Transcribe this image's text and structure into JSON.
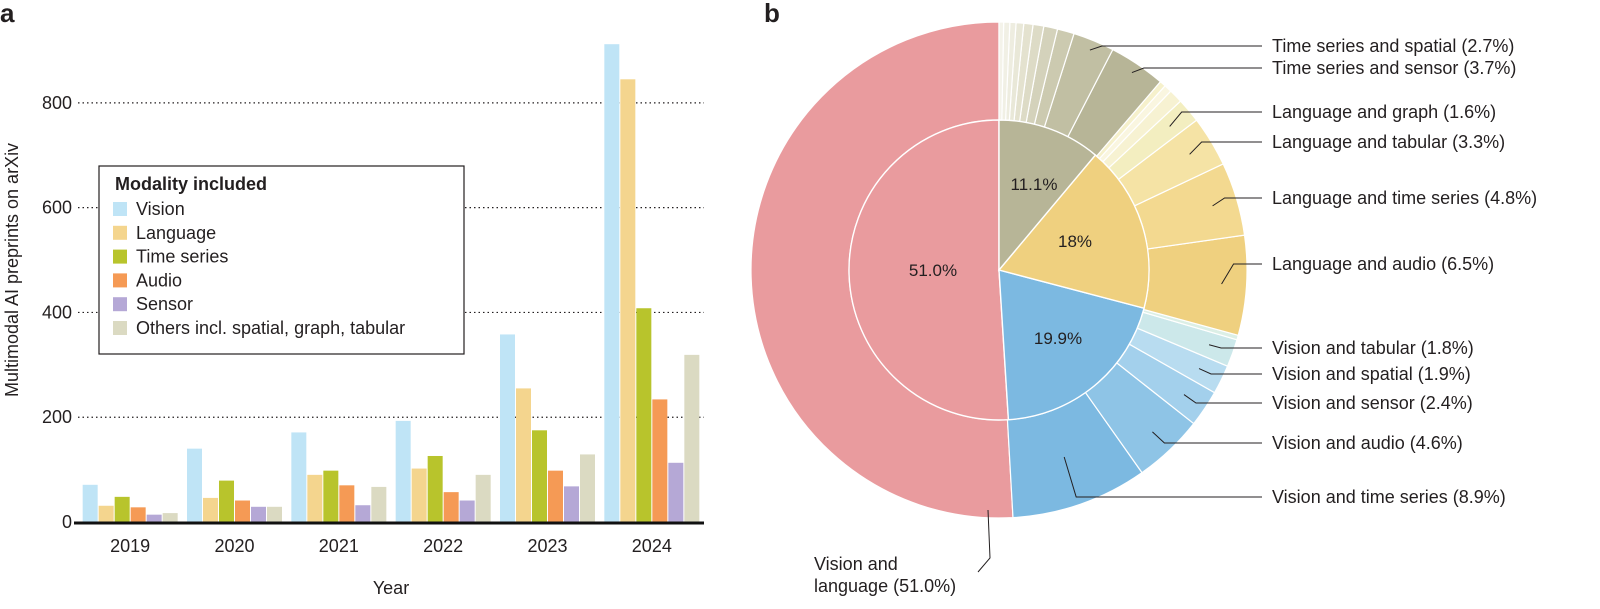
{
  "panels": {
    "a": "a",
    "b": "b"
  },
  "chart_data": [
    {
      "type": "bar",
      "xlabel": "Year",
      "ylabel": "Multimodal AI preprints on arXiv",
      "ylim": [
        0,
        920
      ],
      "yticks": [
        0,
        200,
        400,
        600,
        800
      ],
      "grid": "horizontal dotted",
      "categories": [
        "2019",
        "2020",
        "2021",
        "2022",
        "2023",
        "2024"
      ],
      "legend": {
        "title": "Modality included",
        "placement": "center-left"
      },
      "series": [
        {
          "name": "Vision",
          "color": "#bfe4f6",
          "values": [
            71,
            140,
            171,
            193,
            358,
            912
          ]
        },
        {
          "name": "Language",
          "color": "#f4d58e",
          "values": [
            31,
            46,
            90,
            102,
            255,
            845
          ]
        },
        {
          "name": "Time series",
          "color": "#b8c42c",
          "values": [
            48,
            79,
            98,
            126,
            175,
            408
          ]
        },
        {
          "name": "Audio",
          "color": "#f59a55",
          "values": [
            28,
            41,
            70,
            57,
            98,
            234
          ]
        },
        {
          "name": "Sensor",
          "color": "#b5a8d6",
          "values": [
            14,
            29,
            32,
            41,
            68,
            113
          ]
        },
        {
          "name": "Others incl. spatial, graph, tabular",
          "color": "#dbdac2",
          "values": [
            17,
            29,
            67,
            90,
            129,
            319
          ]
        }
      ]
    },
    {
      "type": "pie",
      "subtype": "nested-donut",
      "inner": [
        {
          "label": "51.0%",
          "value": 51.0,
          "color": "#e99b9e"
        },
        {
          "label": "19.9%",
          "value": 19.9,
          "color": "#7cb9e1"
        },
        {
          "label": "18%",
          "value": 18.0,
          "color": "#efd07f"
        },
        {
          "label": "11.1%",
          "value": 11.1,
          "color": "#b7b597"
        }
      ],
      "outer": [
        {
          "label": "Vision and language (51.0%)",
          "value": 51.0,
          "color": "#e99b9e"
        },
        {
          "label": "Vision and time series (8.9%)",
          "value": 8.9,
          "color": "#7cb9e1"
        },
        {
          "label": "Vision and audio (4.6%)",
          "value": 4.6,
          "color": "#8ec4e6"
        },
        {
          "label": "Vision and sensor (2.4%)",
          "value": 2.4,
          "color": "#a3d0ec"
        },
        {
          "label": "Vision and spatial (1.9%)",
          "value": 1.9,
          "color": "#b8dcf0"
        },
        {
          "label": "Vision and tabular (1.8%)",
          "value": 1.8,
          "color": "#cce8ea"
        },
        {
          "label": "",
          "value": 0.3,
          "color": "#dcefe6"
        },
        {
          "label": "Language and audio (6.5%)",
          "value": 6.5,
          "color": "#efd07f"
        },
        {
          "label": "Language and time series (4.8%)",
          "value": 4.8,
          "color": "#f3d990"
        },
        {
          "label": "Language and tabular (3.3%)",
          "value": 3.3,
          "color": "#f5e3a5"
        },
        {
          "label": "Language and graph (1.6%)",
          "value": 1.6,
          "color": "#f3eec0"
        },
        {
          "label": "",
          "value": 0.9,
          "color": "#f7f2d2"
        },
        {
          "label": "",
          "value": 0.5,
          "color": "#faf6e0"
        },
        {
          "label": "",
          "value": 0.4,
          "color": "#f6f1cc"
        },
        {
          "label": "Time series and sensor (3.7%)",
          "value": 3.7,
          "color": "#b7b597"
        },
        {
          "label": "Time series and spatial (2.7%)",
          "value": 2.7,
          "color": "#c1bfa3"
        },
        {
          "label": "",
          "value": 1.1,
          "color": "#cccab0"
        },
        {
          "label": "",
          "value": 0.9,
          "color": "#d4d2bb"
        },
        {
          "label": "",
          "value": 0.7,
          "color": "#dddbc6"
        },
        {
          "label": "",
          "value": 0.6,
          "color": "#e4e2cf"
        },
        {
          "label": "",
          "value": 0.5,
          "color": "#e9e8d8"
        },
        {
          "label": "",
          "value": 0.4,
          "color": "#eeede0"
        },
        {
          "label": "",
          "value": 0.4,
          "color": "#f1f0e5"
        },
        {
          "label": "",
          "value": 0.3,
          "color": "#f4f3ea"
        }
      ]
    }
  ]
}
